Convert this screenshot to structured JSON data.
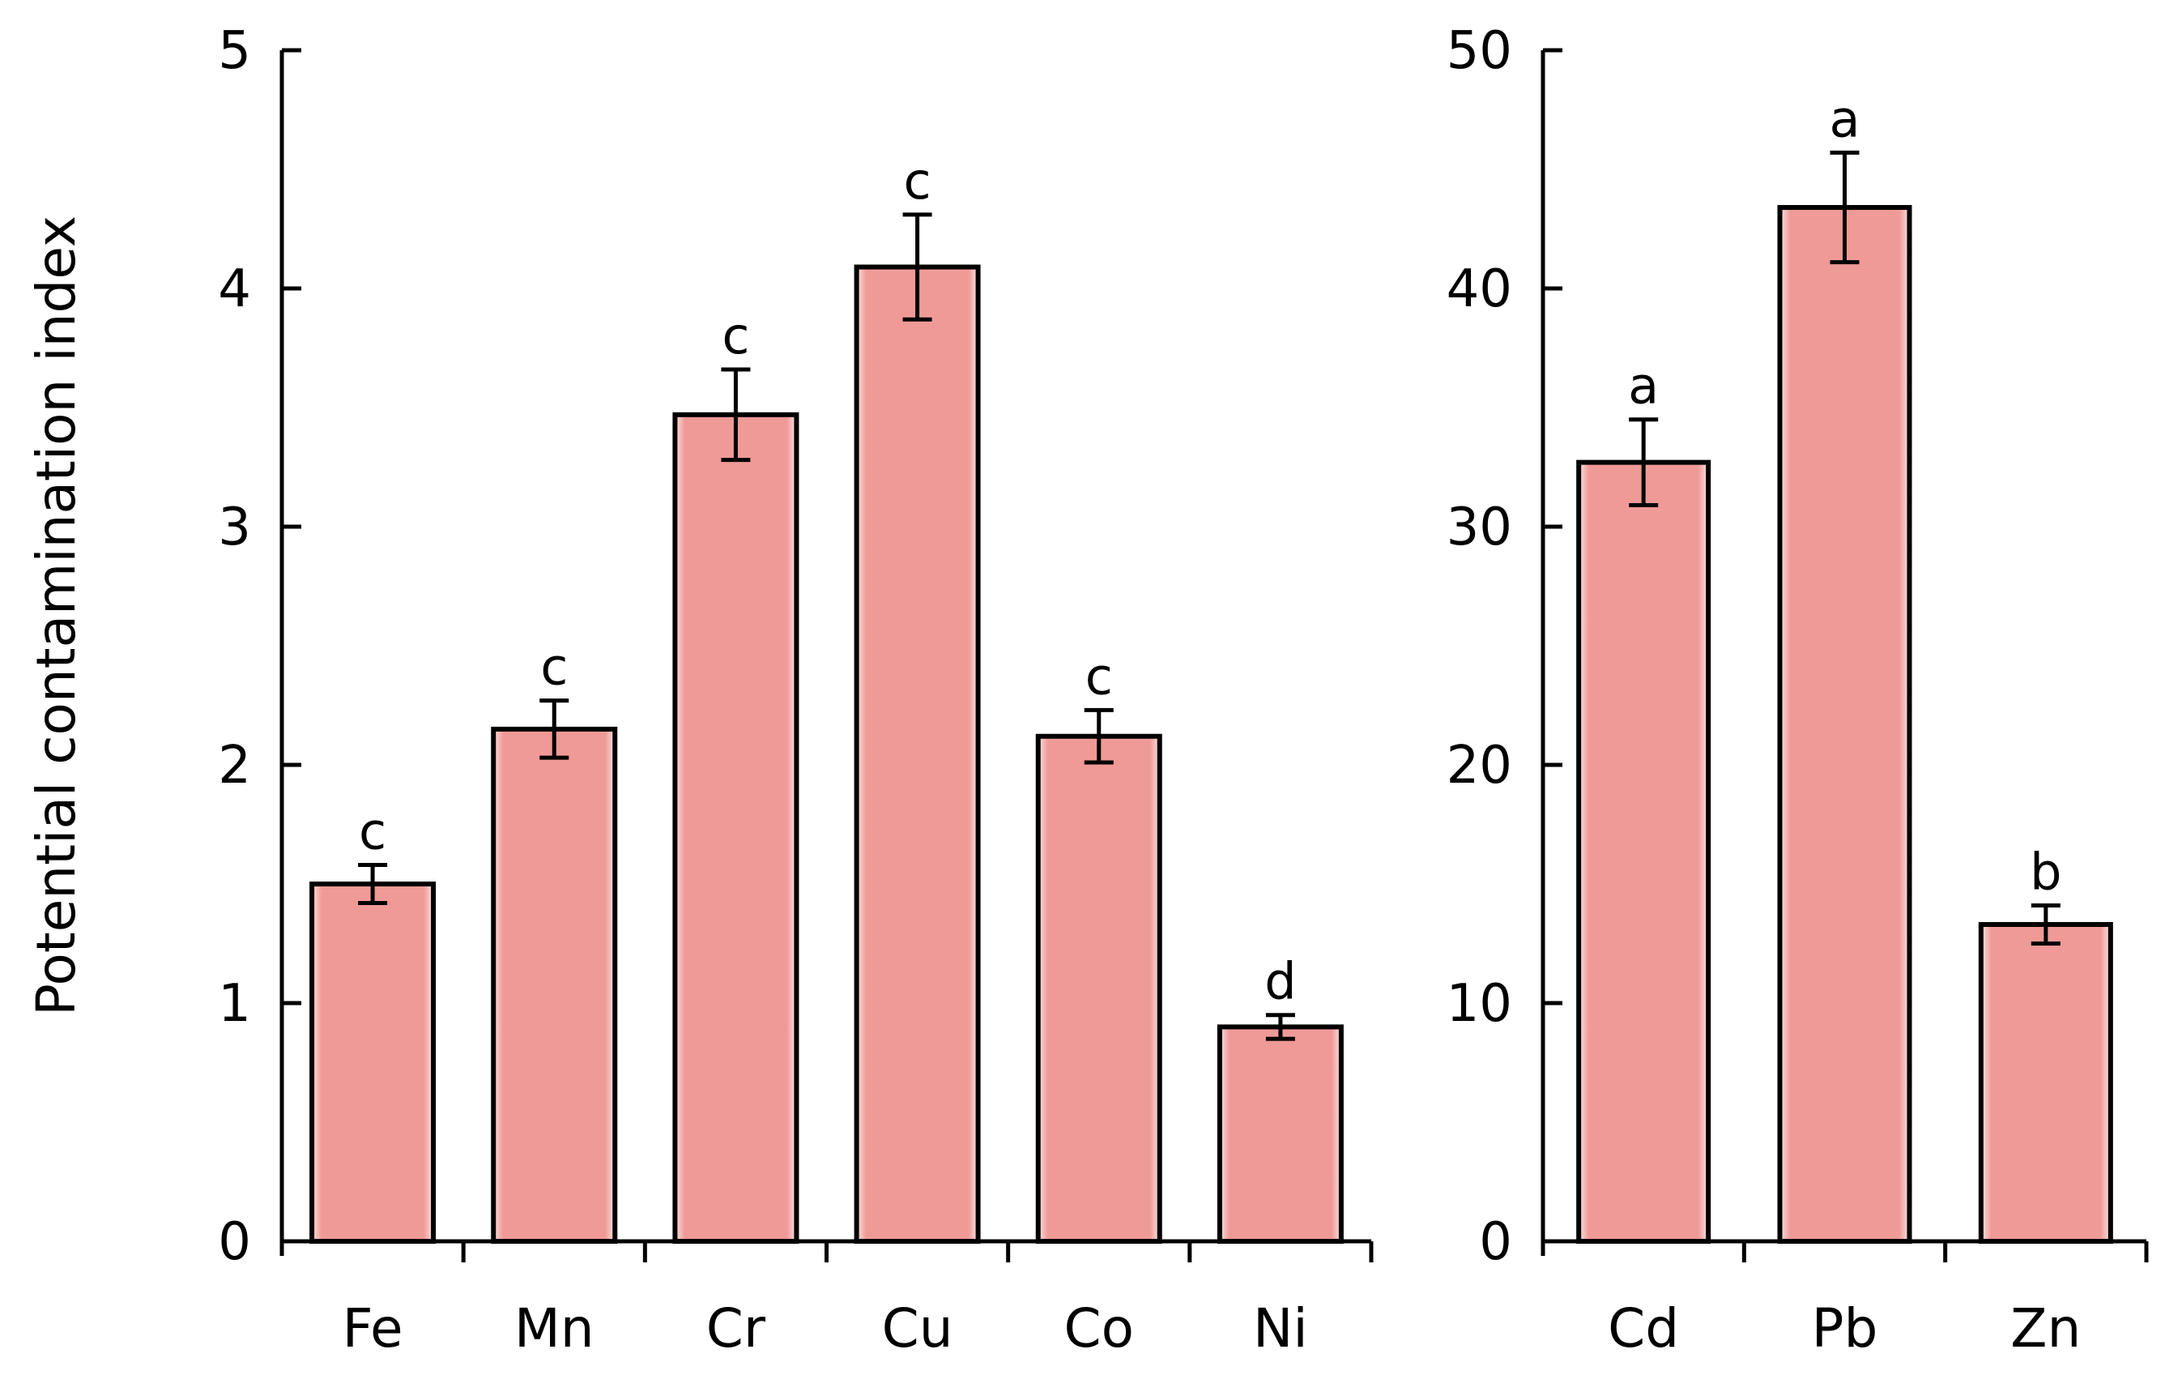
{
  "ylabel": "Potential contamination index",
  "colors": {
    "bar_fill": "#ef9a97",
    "bar_glow": "#fbe3e2",
    "bar_stroke": "#000000",
    "axis": "#000000"
  },
  "chart_data": [
    {
      "type": "bar",
      "title": "",
      "xlabel": "",
      "ylabel": "Potential contamination index",
      "ylim": [
        0,
        5
      ],
      "yticks": [
        0,
        1,
        2,
        3,
        4,
        5
      ],
      "grid": false,
      "categories": [
        "Fe",
        "Mn",
        "Cr",
        "Cu",
        "Co",
        "Ni"
      ],
      "values": [
        1.5,
        2.15,
        3.47,
        4.09,
        2.12,
        0.9
      ],
      "errors": [
        0.08,
        0.12,
        0.19,
        0.22,
        0.11,
        0.05
      ],
      "letters": [
        "c",
        "c",
        "c",
        "c",
        "c",
        "d"
      ]
    },
    {
      "type": "bar",
      "title": "",
      "xlabel": "",
      "ylabel": "",
      "ylim": [
        0,
        50
      ],
      "yticks": [
        0,
        10,
        20,
        30,
        40,
        50
      ],
      "grid": false,
      "categories": [
        "Cd",
        "Pb",
        "Zn"
      ],
      "values": [
        32.7,
        43.4,
        13.3
      ],
      "errors": [
        1.8,
        2.3,
        0.8
      ],
      "letters": [
        "a",
        "a",
        "b"
      ]
    }
  ]
}
